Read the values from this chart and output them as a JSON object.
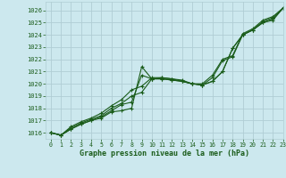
{
  "title": "Graphe pression niveau de la mer (hPa)",
  "bg_color": "#cce8ee",
  "grid_color": "#b0cdd4",
  "line_color": "#1a5c1a",
  "marker_color": "#1a5c1a",
  "xlim": [
    -0.5,
    23
  ],
  "ylim": [
    1015.5,
    1026.7
  ],
  "yticks": [
    1016,
    1017,
    1018,
    1019,
    1020,
    1021,
    1022,
    1023,
    1024,
    1025,
    1026
  ],
  "xticks": [
    0,
    1,
    2,
    3,
    4,
    5,
    6,
    7,
    8,
    9,
    10,
    11,
    12,
    13,
    14,
    15,
    16,
    17,
    18,
    19,
    20,
    21,
    22,
    23
  ],
  "series": [
    [
      1016.0,
      1015.8,
      1016.3,
      1016.7,
      1017.0,
      1017.2,
      1017.7,
      1017.8,
      1018.0,
      1021.4,
      1020.4,
      1020.4,
      1020.3,
      1020.2,
      1020.0,
      1019.9,
      1020.2,
      1021.0,
      1022.9,
      1024.0,
      1024.4,
      1025.0,
      1025.2,
      1026.2
    ],
    [
      1016.0,
      1015.8,
      1016.3,
      1016.7,
      1017.0,
      1017.3,
      1017.8,
      1018.3,
      1018.5,
      1020.7,
      1020.4,
      1020.4,
      1020.3,
      1020.2,
      1020.0,
      1019.9,
      1020.2,
      1021.0,
      1022.9,
      1024.0,
      1024.4,
      1025.0,
      1025.3,
      1026.2
    ],
    [
      1016.0,
      1015.8,
      1016.4,
      1016.8,
      1017.1,
      1017.4,
      1018.0,
      1018.4,
      1019.0,
      1019.3,
      1020.4,
      1020.5,
      1020.4,
      1020.2,
      1020.0,
      1019.9,
      1020.5,
      1021.9,
      1022.2,
      1024.0,
      1024.4,
      1025.1,
      1025.4,
      1026.2
    ],
    [
      1016.0,
      1015.8,
      1016.5,
      1016.9,
      1017.2,
      1017.6,
      1018.2,
      1018.7,
      1019.5,
      1019.8,
      1020.5,
      1020.5,
      1020.4,
      1020.3,
      1020.0,
      1020.0,
      1020.7,
      1022.0,
      1022.3,
      1024.1,
      1024.5,
      1025.2,
      1025.5,
      1026.2
    ]
  ],
  "figsize": [
    3.2,
    2.0
  ],
  "dpi": 100
}
